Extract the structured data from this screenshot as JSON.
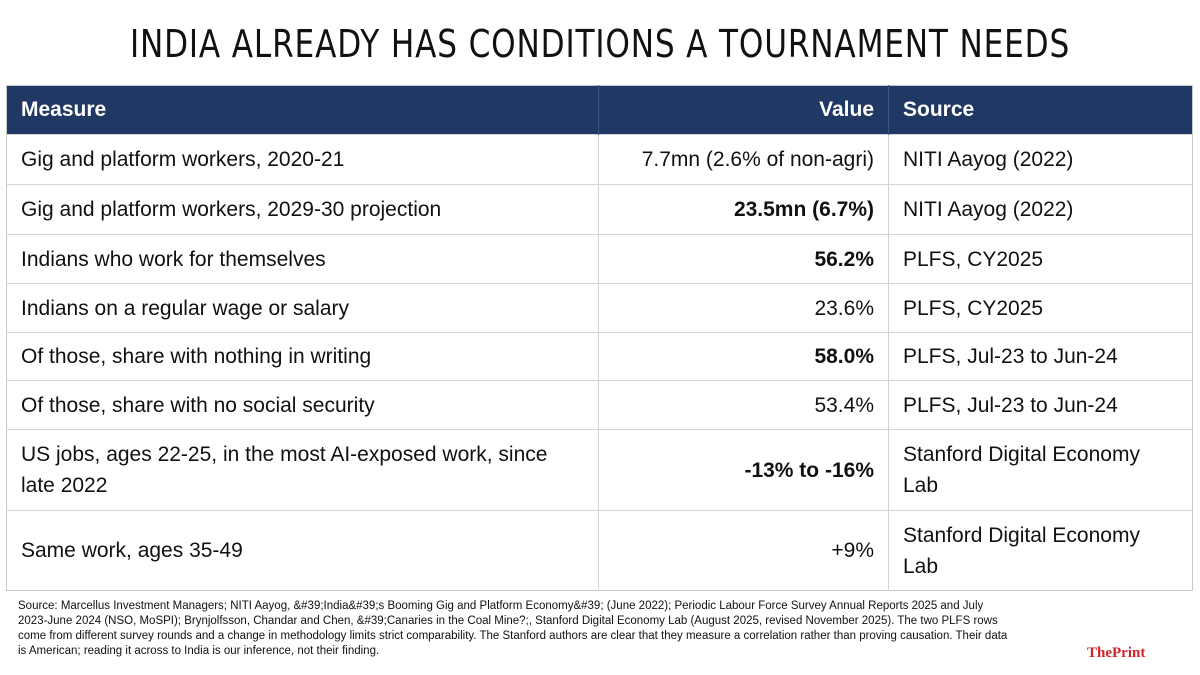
{
  "title": "INDIA ALREADY HAS CONDITIONS A TOURNAMENT NEEDS",
  "table": {
    "headers": {
      "measure": "Measure",
      "value": "Value",
      "source": "Source"
    },
    "rows": [
      {
        "measure": "Gig and platform workers, 2020-21",
        "value": "7.7mn (2.6% of non-agri)",
        "source": "NITI Aayog (2022)",
        "bold": false
      },
      {
        "measure": "Gig and platform workers, 2029-30 projection",
        "value": "23.5mn (6.7%)",
        "source": "NITI Aayog (2022)",
        "bold": true
      },
      {
        "measure": "Indians who work for themselves",
        "value": "56.2%",
        "source": "PLFS, CY2025",
        "bold": true
      },
      {
        "measure": "Indians on a regular wage or salary",
        "value": "23.6%",
        "source": "PLFS, CY2025",
        "bold": false
      },
      {
        "measure": "Of those, share with nothing in writing",
        "value": "58.0%",
        "source": "PLFS, Jul-23 to Jun-24",
        "bold": true
      },
      {
        "measure": "Of those, share with no social security",
        "value": "53.4%",
        "source": "PLFS, Jul-23 to Jun-24",
        "bold": false
      },
      {
        "measure": "US jobs, ages 22-25, in the most AI-exposed work, since late 2022",
        "value": "-13% to -16%",
        "source": "Stanford Digital Economy Lab",
        "bold": true
      },
      {
        "measure": "Same work, ages 35-49",
        "value": "+9%",
        "source": "Stanford Digital Economy Lab",
        "bold": false
      }
    ]
  },
  "footer": {
    "source_note": "Source: Marcellus Investment Managers; NITI Aayog, &#39;India&#39;s Booming Gig and Platform Economy&#39; (June 2022); Periodic Labour Force Survey Annual Reports 2025 and July 2023-June 2024 (NSO, MoSPI); Brynjolfsson, Chandar and Chen, &#39;Canaries in the Coal Mine?;, Stanford Digital Economy Lab (August 2025, revised November 2025). The two PLFS rows come from different survey rounds and a change in methodology limits strict comparability. The Stanford authors are clear that they measure a correlation rather than proving causation. Their data is American; reading it across to India is our inference, not their finding."
  },
  "brand": {
    "logo_text": "ThePrint",
    "accent_color": "#d2232a",
    "header_color": "#1f3864"
  }
}
